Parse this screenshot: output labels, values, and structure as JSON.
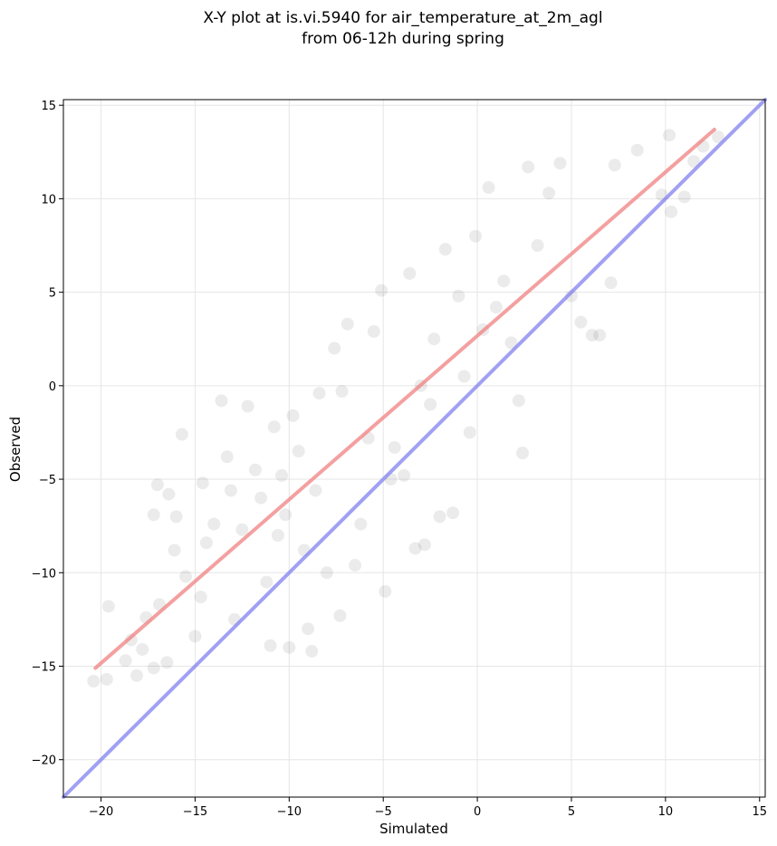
{
  "chart_data": {
    "type": "scatter",
    "title": [
      "X-Y plot at is.vi.5940 for air_temperature_at_2m_agl",
      "from 06-12h during spring"
    ],
    "xlabel": "Simulated",
    "ylabel": "Observed",
    "xlim": [
      -22,
      15.3
    ],
    "ylim": [
      -22,
      15.3
    ],
    "xticks": [
      -20,
      -15,
      -10,
      -5,
      0,
      5,
      10,
      15
    ],
    "yticks": [
      -20,
      -15,
      -10,
      -5,
      0,
      5,
      10,
      15
    ],
    "xtick_labels": [
      "−20",
      "−15",
      "−10",
      "−5",
      "0",
      "5",
      "10",
      "15"
    ],
    "ytick_labels": [
      "−20",
      "−15",
      "−10",
      "−5",
      "0",
      "5",
      "10",
      "15"
    ],
    "grid": true,
    "point_color": "#000000",
    "point_alpha": 0.08,
    "series": [
      {
        "points": [
          [
            -20.4,
            -15.8
          ],
          [
            -19.7,
            -15.7
          ],
          [
            -19.6,
            -11.8
          ],
          [
            -18.7,
            -14.7
          ],
          [
            -18.4,
            -13.6
          ],
          [
            -18.1,
            -15.5
          ],
          [
            -17.8,
            -14.1
          ],
          [
            -17.6,
            -12.4
          ],
          [
            -17.2,
            -15.1
          ],
          [
            -17.2,
            -6.9
          ],
          [
            -17.0,
            -5.3
          ],
          [
            -16.9,
            -11.7
          ],
          [
            -16.5,
            -14.8
          ],
          [
            -16.4,
            -5.8
          ],
          [
            -16.1,
            -8.8
          ],
          [
            -16.0,
            -7.0
          ],
          [
            -15.7,
            -2.6
          ],
          [
            -15.5,
            -10.2
          ],
          [
            -15.0,
            -13.4
          ],
          [
            -14.7,
            -11.3
          ],
          [
            -14.6,
            -5.2
          ],
          [
            -14.4,
            -8.4
          ],
          [
            -14.0,
            -7.4
          ],
          [
            -13.6,
            -0.8
          ],
          [
            -13.3,
            -3.8
          ],
          [
            -13.1,
            -5.6
          ],
          [
            -12.9,
            -12.5
          ],
          [
            -12.5,
            -7.7
          ],
          [
            -12.2,
            -1.1
          ],
          [
            -11.8,
            -4.5
          ],
          [
            -11.5,
            -6.0
          ],
          [
            -11.2,
            -10.5
          ],
          [
            -11.0,
            -13.9
          ],
          [
            -10.8,
            -2.2
          ],
          [
            -10.6,
            -8.0
          ],
          [
            -10.4,
            -4.8
          ],
          [
            -10.2,
            -6.9
          ],
          [
            -10.0,
            -14.0
          ],
          [
            -9.8,
            -1.6
          ],
          [
            -9.5,
            -3.5
          ],
          [
            -9.2,
            -8.8
          ],
          [
            -9.0,
            -13.0
          ],
          [
            -8.8,
            -14.2
          ],
          [
            -8.6,
            -5.6
          ],
          [
            -8.4,
            -0.4
          ],
          [
            -8.0,
            -10.0
          ],
          [
            -7.6,
            2.0
          ],
          [
            -7.3,
            -12.3
          ],
          [
            -7.2,
            -0.3
          ],
          [
            -6.9,
            3.3
          ],
          [
            -6.5,
            -9.6
          ],
          [
            -6.2,
            -7.4
          ],
          [
            -5.8,
            -2.8
          ],
          [
            -5.5,
            2.9
          ],
          [
            -5.1,
            5.1
          ],
          [
            -4.9,
            -11.0
          ],
          [
            -4.6,
            -5.0
          ],
          [
            -4.4,
            -3.3
          ],
          [
            -3.9,
            -4.8
          ],
          [
            -3.6,
            6.0
          ],
          [
            -3.3,
            -8.7
          ],
          [
            -3.0,
            0.0
          ],
          [
            -2.8,
            -8.5
          ],
          [
            -2.5,
            -1.0
          ],
          [
            -2.3,
            2.5
          ],
          [
            -2.0,
            -7.0
          ],
          [
            -1.7,
            7.3
          ],
          [
            -1.3,
            -6.8
          ],
          [
            -1.0,
            4.8
          ],
          [
            -0.7,
            0.5
          ],
          [
            -0.4,
            -2.5
          ],
          [
            -0.1,
            8.0
          ],
          [
            0.3,
            3.0
          ],
          [
            0.6,
            10.6
          ],
          [
            1.0,
            4.2
          ],
          [
            1.4,
            5.6
          ],
          [
            1.8,
            2.3
          ],
          [
            2.2,
            -0.8
          ],
          [
            2.4,
            -3.6
          ],
          [
            2.7,
            11.7
          ],
          [
            3.2,
            7.5
          ],
          [
            3.8,
            10.3
          ],
          [
            4.4,
            11.9
          ],
          [
            5.0,
            4.8
          ],
          [
            5.5,
            3.4
          ],
          [
            6.1,
            2.7
          ],
          [
            6.5,
            2.7
          ],
          [
            7.1,
            5.5
          ],
          [
            7.3,
            11.8
          ],
          [
            8.5,
            12.6
          ],
          [
            9.8,
            10.2
          ],
          [
            10.2,
            13.4
          ],
          [
            10.3,
            9.3
          ],
          [
            11.0,
            10.1
          ],
          [
            11.5,
            12.0
          ],
          [
            12.0,
            12.8
          ],
          [
            12.8,
            13.3
          ]
        ]
      }
    ],
    "lines": [
      {
        "name": "fit",
        "color": "#f08080",
        "x": [
          -20.3,
          12.6
        ],
        "y": [
          -15.1,
          13.7
        ]
      },
      {
        "name": "1:1",
        "color": "#8080f0",
        "x": [
          -22,
          15.3
        ],
        "y": [
          -22,
          15.3
        ]
      }
    ]
  }
}
